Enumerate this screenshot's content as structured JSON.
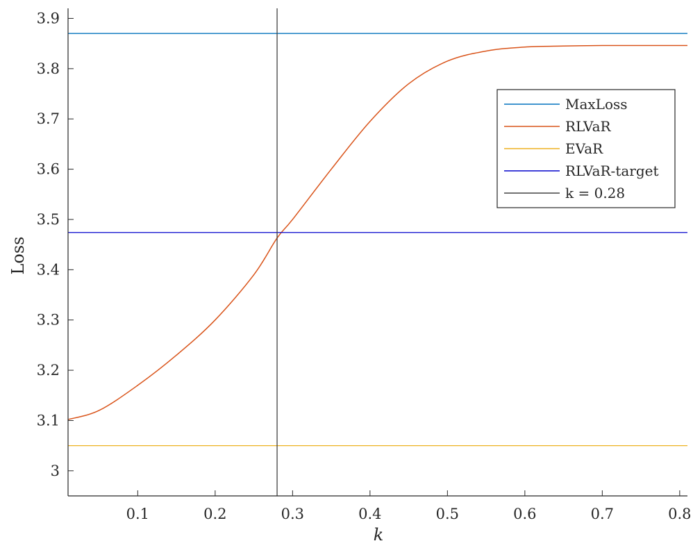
{
  "chart_data": {
    "type": "line",
    "title": "",
    "xlabel": "k",
    "ylabel": "Loss",
    "xlim": [
      0.01,
      0.81
    ],
    "ylim": [
      2.95,
      3.92
    ],
    "xticks": [
      0.1,
      0.2,
      0.3,
      0.4,
      0.5,
      0.6,
      0.7,
      0.8
    ],
    "xtick_labels": [
      "0.1",
      "0.2",
      "0.3",
      "0.4",
      "0.5",
      "0.6",
      "0.7",
      "0.8"
    ],
    "yticks": [
      3.0,
      3.1,
      3.2,
      3.3,
      3.4,
      3.5,
      3.6,
      3.7,
      3.8,
      3.9
    ],
    "ytick_labels": [
      "3",
      "3.1",
      "3.2",
      "3.3",
      "3.4",
      "3.5",
      "3.6",
      "3.7",
      "3.8",
      "3.9"
    ],
    "grid": false,
    "legend_position": "top-right",
    "series": [
      {
        "name": "MaxLoss",
        "color": "#0072BD",
        "kind": "hline",
        "y": 3.87
      },
      {
        "name": "RLVaR",
        "color": "#D95319",
        "kind": "curve",
        "x": [
          0.01,
          0.05,
          0.1,
          0.15,
          0.2,
          0.25,
          0.28,
          0.3,
          0.35,
          0.4,
          0.45,
          0.5,
          0.55,
          0.6,
          0.65,
          0.7,
          0.75,
          0.81
        ],
        "y": [
          3.102,
          3.12,
          3.17,
          3.23,
          3.3,
          3.39,
          3.463,
          3.5,
          3.6,
          3.695,
          3.77,
          3.815,
          3.835,
          3.843,
          3.845,
          3.846,
          3.846,
          3.846
        ]
      },
      {
        "name": "EVaR",
        "color": "#EDB120",
        "kind": "hline",
        "y": 3.05
      },
      {
        "name": "RLVaR-target",
        "color": "#0000CC",
        "kind": "hline",
        "y": 3.474
      },
      {
        "name": "k = 0.28",
        "color": "#404040",
        "kind": "vline",
        "x": 0.28
      }
    ]
  }
}
